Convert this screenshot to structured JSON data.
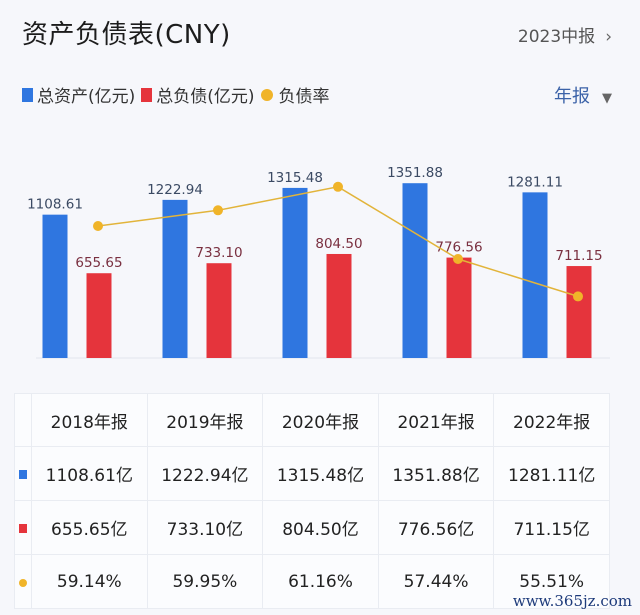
{
  "header": {
    "title": "资产负债表(CNY)",
    "period_link": "2023中报",
    "chevron_icon": "chevron-right-icon"
  },
  "legend": {
    "items": [
      {
        "label": "总资产(亿元)",
        "color": "#2f76e0",
        "shape": "square"
      },
      {
        "label": "总负债(亿元)",
        "color": "#e5343c",
        "shape": "square"
      },
      {
        "label": "负债率",
        "color": "#f0b429",
        "shape": "circle"
      }
    ]
  },
  "period_select": {
    "value": "年报",
    "icon": "caret-down-icon"
  },
  "chart_data": {
    "type": "bar",
    "title": "资产负债表(CNY)",
    "categories": [
      "2018年报",
      "2019年报",
      "2020年报",
      "2021年报",
      "2022年报"
    ],
    "series": [
      {
        "name": "总资产(亿元)",
        "type": "bar",
        "color": "#2f76e0",
        "values": [
          1108.61,
          1222.94,
          1315.48,
          1351.88,
          1281.11
        ],
        "labels": [
          "1108.61",
          "1222.94",
          "1315.48",
          "1351.88",
          "1281.11"
        ]
      },
      {
        "name": "总负债(亿元)",
        "type": "bar",
        "color": "#e5343c",
        "values": [
          655.65,
          733.1,
          804.5,
          776.56,
          711.15
        ],
        "labels": [
          "655.65",
          "733.10",
          "804.50",
          "776.56",
          "711.15"
        ]
      },
      {
        "name": "负债率",
        "type": "line",
        "color": "#f0b429",
        "values": [
          59.14,
          59.95,
          61.16,
          57.44,
          55.51
        ],
        "unit": "%"
      }
    ],
    "legend_position": "top-left",
    "grid": false
  },
  "table": {
    "headers": [
      "2018年报",
      "2019年报",
      "2020年报",
      "2021年报",
      "2022年报"
    ],
    "rows": [
      {
        "marker": "square",
        "color": "#2f76e0",
        "cells": [
          "1108.61亿",
          "1222.94亿",
          "1315.48亿",
          "1351.88亿",
          "1281.11亿"
        ]
      },
      {
        "marker": "square",
        "color": "#e5343c",
        "cells": [
          "655.65亿",
          "733.10亿",
          "804.50亿",
          "776.56亿",
          "711.15亿"
        ]
      },
      {
        "marker": "circle",
        "color": "#f0b429",
        "cells": [
          "59.14%",
          "59.95%",
          "61.16%",
          "57.44%",
          "55.51%"
        ]
      }
    ]
  },
  "watermark": "www.365jz.com"
}
